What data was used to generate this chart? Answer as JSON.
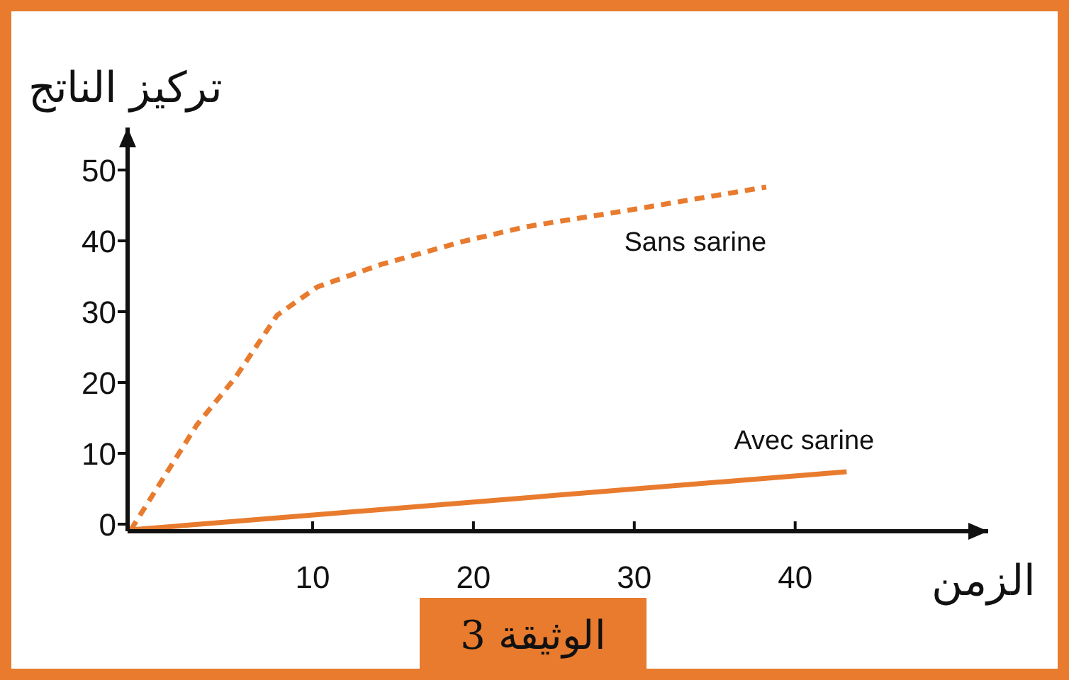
{
  "chart_data": {
    "type": "line",
    "ylabel": "تركيز الناتج",
    "xlabel": "الزمن",
    "annotations": [
      "الوثيقة 3"
    ],
    "xlim": [
      -1.5,
      52
    ],
    "ylim": [
      -1,
      56
    ],
    "xticks": [
      10,
      20,
      30,
      40
    ],
    "yticks": [
      0,
      10,
      20,
      30,
      40,
      50
    ],
    "grid": false,
    "legend": false,
    "marker": "none",
    "series": [
      {
        "name": "Sans sarine",
        "color": "#e87b2e",
        "line_style": "dashed",
        "x": [
          -1.3,
          2.8,
          5.2,
          7.8,
          10.3,
          14.3,
          19.5,
          23.3,
          30.4,
          38.2
        ],
        "values": [
          -0.8,
          14,
          20.7,
          29.5,
          33.5,
          36.7,
          40,
          42,
          44.6,
          47.6
        ]
      },
      {
        "name": "Avec sarine",
        "color": "#e87b2e",
        "line_style": "solid",
        "x": [
          -1.3,
          43.2
        ],
        "values": [
          -0.8,
          7.4
        ]
      }
    ]
  }
}
